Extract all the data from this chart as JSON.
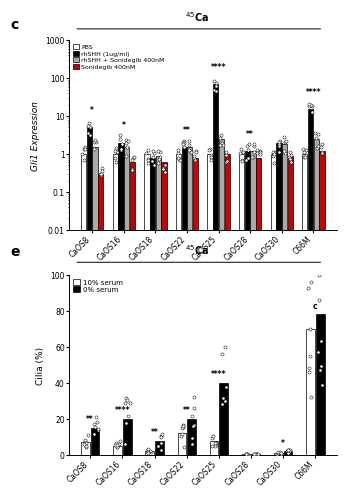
{
  "panel_c": {
    "title": "$^{45}$Ca",
    "ylabel": "Gli1 Expression",
    "categories": [
      "CaOS8",
      "CaOS16",
      "CaOS18",
      "CaOS22",
      "CaOS25",
      "CaOS28",
      "CaOS30",
      "C66M"
    ],
    "conditions": [
      "PBS",
      "rhSHH (1ug/ml)",
      "rhSHH + Sonidegib 400nM",
      "Sonidegib 400nM"
    ],
    "colors": [
      "#ffffff",
      "#000000",
      "#aaaaaa",
      "#cc0000"
    ],
    "bar_values": [
      [
        1.0,
        1.0,
        1.0,
        1.0,
        1.0,
        1.0,
        1.0,
        1.0
      ],
      [
        5.0,
        2.0,
        0.8,
        1.5,
        70.0,
        1.2,
        2.0,
        15.0
      ],
      [
        1.5,
        1.5,
        0.9,
        1.5,
        2.5,
        1.2,
        1.8,
        2.5
      ],
      [
        0.3,
        0.6,
        0.6,
        0.8,
        1.0,
        0.8,
        0.9,
        1.2
      ]
    ],
    "sig_positions": [
      0,
      1,
      3,
      4,
      5,
      7
    ],
    "sig_texts": [
      "*",
      "*",
      "**",
      "****",
      "**",
      "****"
    ],
    "ylim_log": [
      0.01,
      1000
    ],
    "yticks": [
      0.01,
      0.1,
      1,
      10,
      100,
      1000
    ],
    "ytick_labels": [
      "0.01",
      "0.1",
      "1",
      "10",
      "100",
      "1000"
    ]
  },
  "panel_e": {
    "title": "$^{45}$Ca",
    "ylabel": "Cilia (%)",
    "categories": [
      "CaOS8",
      "CaOS16",
      "CaOS18",
      "CaOS22",
      "CaOS25",
      "CaOS28",
      "CaOS30",
      "C66M"
    ],
    "conditions": [
      "10% serum",
      "0% serum"
    ],
    "colors": [
      "#ffffff",
      "#000000"
    ],
    "bar_values": [
      [
        7.0,
        5.0,
        2.0,
        12.0,
        8.0,
        0.5,
        1.0,
        70.0
      ],
      [
        15.0,
        20.0,
        8.0,
        20.0,
        40.0,
        0.5,
        2.0,
        78.0
      ]
    ],
    "sig_positions": [
      0,
      1,
      2,
      3,
      4,
      5,
      6,
      7
    ],
    "sig_texts": [
      "**",
      "****",
      "**",
      "**",
      "****",
      "",
      "*",
      "c"
    ],
    "ylim": [
      0,
      100
    ],
    "yticks": [
      0,
      20,
      40,
      60,
      80,
      100
    ]
  }
}
